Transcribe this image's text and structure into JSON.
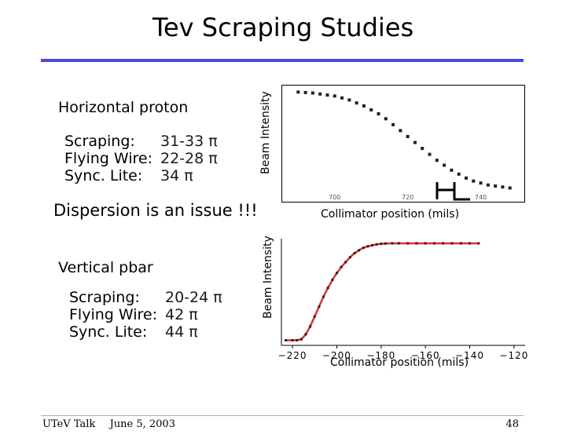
{
  "slide": {
    "title": "Tev Scraping Studies",
    "dispersion_note": "Dispersion is an issue !!!",
    "footer_left": "UTeV Talk",
    "footer_date": "June 5, 2003",
    "page_number": "48"
  },
  "horizontal": {
    "heading": "Horizontal proton",
    "rows": [
      {
        "label": "Scraping:",
        "value": "31-33 π"
      },
      {
        "label": "Flying Wire:",
        "value": "22-28 π"
      },
      {
        "label": "Sync. Lite:",
        "value": "34 π"
      }
    ]
  },
  "vertical": {
    "heading": "Vertical pbar",
    "rows": [
      {
        "label": "Scraping:",
        "value": "20-24 π"
      },
      {
        "label": "Flying Wire:",
        "value": "42 π"
      },
      {
        "label": "Sync. Lite:",
        "value": "44 π"
      }
    ]
  },
  "chart_data": [
    {
      "type": "scatter",
      "ylabel": "Beam Intensity",
      "xlabel": "Collimator position (mils)",
      "tick_labels": [
        "700",
        "720",
        "740"
      ],
      "x": [
        690,
        692,
        694,
        696,
        698,
        700,
        702,
        704,
        706,
        708,
        710,
        712,
        714,
        716,
        718,
        720,
        722,
        724,
        726,
        728,
        730,
        732,
        734,
        736,
        738,
        740,
        742,
        744,
        746,
        748
      ],
      "y": [
        0.99,
        0.985,
        0.98,
        0.97,
        0.96,
        0.95,
        0.93,
        0.91,
        0.88,
        0.85,
        0.81,
        0.77,
        0.72,
        0.66,
        0.6,
        0.54,
        0.48,
        0.42,
        0.36,
        0.3,
        0.25,
        0.2,
        0.16,
        0.12,
        0.09,
        0.07,
        0.05,
        0.04,
        0.03,
        0.02
      ],
      "grid": false
    },
    {
      "type": "line",
      "ylabel": "Beam Intensity",
      "xlabel": "Collimator position (mils)",
      "x_ticks": [
        "−220",
        "−200",
        "−180",
        "−160",
        "−140",
        "−120"
      ],
      "xlim": [
        -225,
        -115
      ],
      "ylim": [
        0,
        1
      ],
      "x": [
        -223,
        -220,
        -218,
        -216,
        -214,
        -212,
        -210,
        -208,
        -206,
        -204,
        -202,
        -200,
        -198,
        -196,
        -194,
        -192,
        -190,
        -188,
        -186,
        -184,
        -182,
        -180,
        -178,
        -175,
        -172,
        -168,
        -164,
        -160,
        -156,
        -152,
        -148,
        -144,
        -140,
        -136
      ],
      "y": [
        0.02,
        0.02,
        0.02,
        0.03,
        0.08,
        0.16,
        0.26,
        0.36,
        0.46,
        0.55,
        0.63,
        0.7,
        0.76,
        0.81,
        0.86,
        0.9,
        0.93,
        0.955,
        0.97,
        0.98,
        0.99,
        0.995,
        0.998,
        1.0,
        1.0,
        1.0,
        1.0,
        1.0,
        1.0,
        1.0,
        1.0,
        1.0,
        1.0,
        1.0
      ],
      "grid": false
    }
  ]
}
